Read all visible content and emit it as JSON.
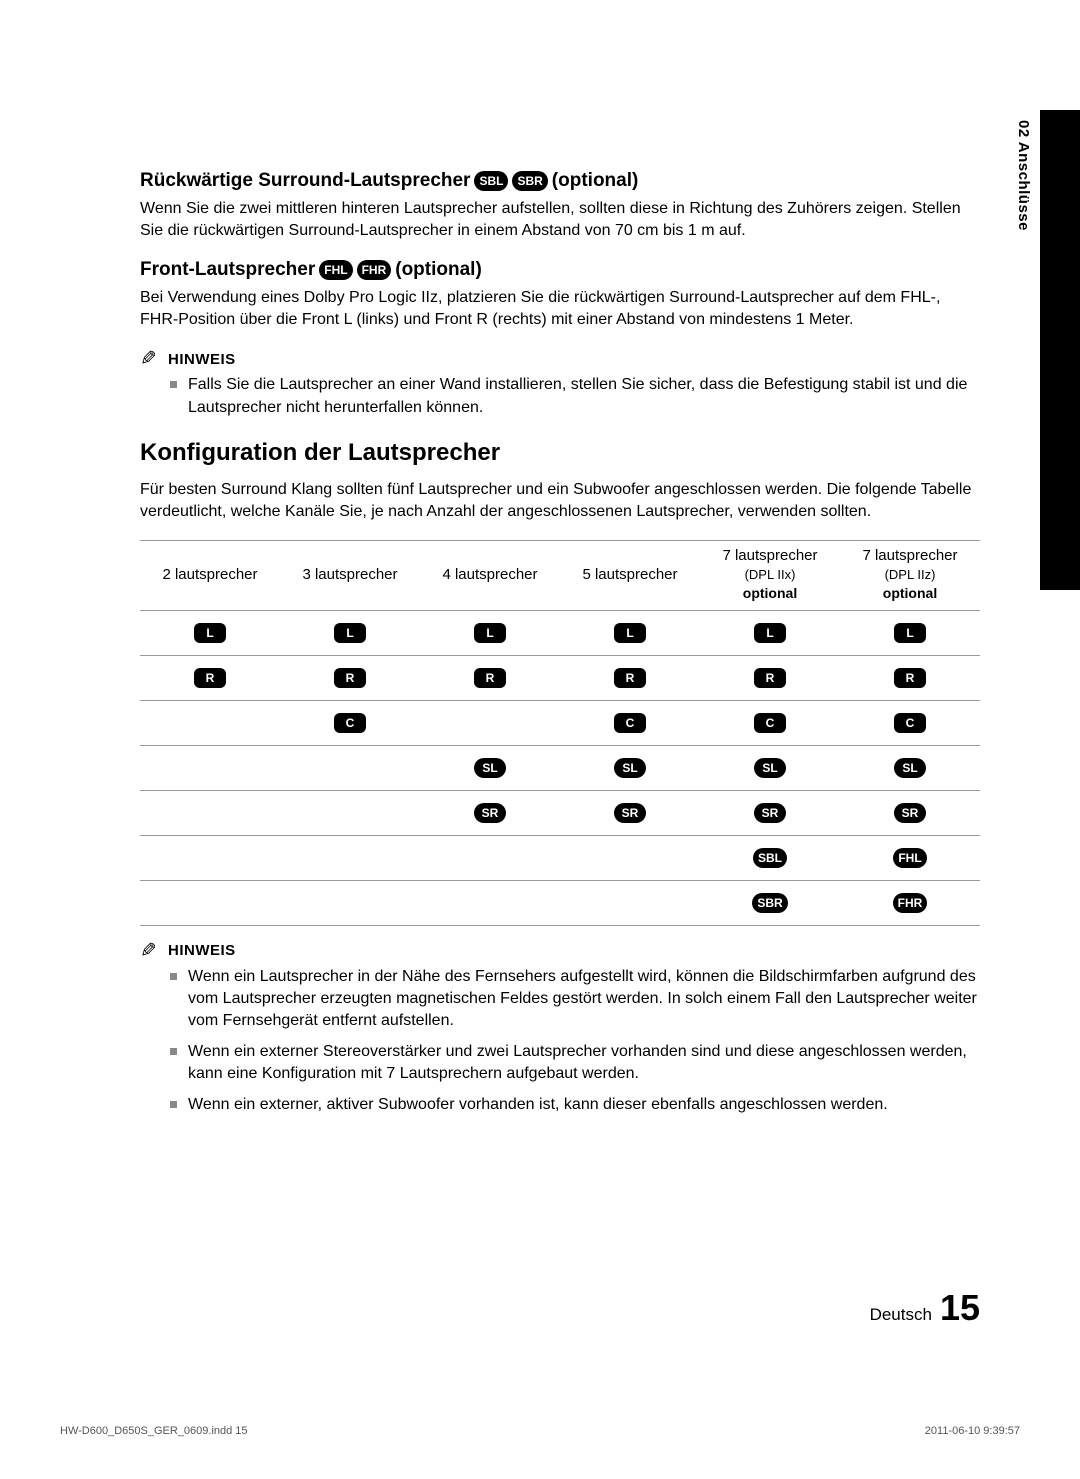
{
  "sideTab": "02  Anschlüsse",
  "sec1": {
    "titlePre": "Rückwärtige Surround-Lautsprecher",
    "icons": [
      "SBL",
      "SBR"
    ],
    "titlePost": "(optional)",
    "body": "Wenn Sie die zwei mittleren hinteren Lautsprecher aufstellen, sollten diese in Richtung des Zuhörers zeigen. Stellen Sie die rückwärtigen Surround-Lautsprecher in einem Abstand von 70 cm bis 1 m auf."
  },
  "sec2": {
    "titlePre": "Front-Lautsprecher",
    "icons": [
      "FHL",
      "FHR"
    ],
    "titlePost": " (optional)",
    "body": "Bei Verwendung eines Dolby Pro Logic IIz, platzieren Sie die rückwärtigen Surround-Lautsprecher auf dem FHL-, FHR-Position über die Front L (links) und Front R (rechts) mit einer Abstand von mindestens 1 Meter."
  },
  "hinweisLabel": "HINWEIS",
  "note1": "Falls Sie die Lautsprecher an einer Wand installieren, stellen Sie sicher, dass die Befestigung stabil ist und die Lautsprecher nicht herunterfallen können.",
  "configTitle": "Konfiguration der Lautsprecher",
  "configIntro": "Für besten Surround Klang sollten fünf Lautsprecher und ein Subwoofer angeschlossen werden. Die folgende Tabelle verdeutlicht, welche Kanäle Sie, je nach Anzahl der angeschlossenen Lautsprecher, verwenden sollten.",
  "table": {
    "headers": [
      {
        "line1": "2 lautsprecher"
      },
      {
        "line1": "3 lautsprecher"
      },
      {
        "line1": "4 lautsprecher"
      },
      {
        "line1": "5 lautsprecher"
      },
      {
        "line1": "7 lautsprecher",
        "line2": "(DPL IIx)",
        "line3": "optional"
      },
      {
        "line1": "7 lautsprecher",
        "line2": "(DPL IIz)",
        "line3": "optional"
      }
    ],
    "rows": [
      [
        "L",
        "L",
        "L",
        "L",
        "L",
        "L"
      ],
      [
        "R",
        "R",
        "R",
        "R",
        "R",
        "R"
      ],
      [
        "",
        "C",
        "",
        "C",
        "C",
        "C"
      ],
      [
        "",
        "",
        "SL",
        "SL",
        "SL",
        "SL"
      ],
      [
        "",
        "",
        "SR",
        "SR",
        "SR",
        "SR"
      ],
      [
        "",
        "",
        "",
        "",
        "SBL",
        "FHL"
      ],
      [
        "",
        "",
        "",
        "",
        "SBR",
        "FHR"
      ]
    ]
  },
  "notes2": [
    "Wenn ein Lautsprecher in der Nähe des Fernsehers aufgestellt wird, können die Bildschirmfarben aufgrund des vom Lautsprecher erzeugten magnetischen Feldes gestört werden. In solch einem Fall den Lautsprecher weiter vom Fernsehgerät entfernt aufstellen.",
    "Wenn ein externer Stereoverstärker und zwei Lautsprecher vorhanden sind und diese angeschlossen werden, kann eine Konfiguration mit 7 Lautsprechern aufgebaut werden.",
    "Wenn ein externer, aktiver Subwoofer vorhanden ist, kann dieser ebenfalls angeschlossen werden."
  ],
  "footer": {
    "lang": "Deutsch",
    "page": "15"
  },
  "meta": {
    "file": "HW-D600_D650S_GER_0609.indd   15",
    "stamp": "2011-06-10   9:39:57"
  }
}
